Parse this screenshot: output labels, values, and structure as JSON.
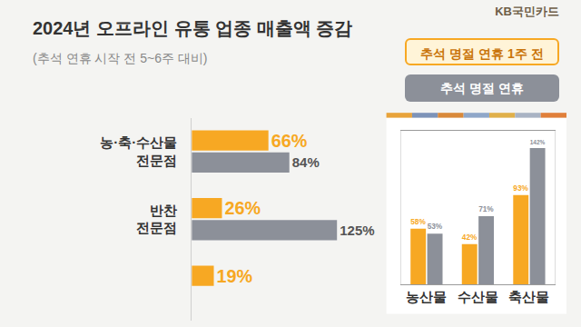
{
  "logo": "KB국민카드",
  "chart_data": [
    {
      "type": "bar",
      "title": "2024년 오프라인 유통 업종 매출액 증감",
      "subtitle": "(추석 연휴 시작 전 5~6주 대비)",
      "orientation": "horizontal",
      "categories": [
        "농·축·수산물 전문점",
        "반찬 전문점",
        null
      ],
      "series": [
        {
          "name": "추석 명절 연휴 1주 전",
          "color": "#f7a823",
          "values": [
            66,
            26,
            19
          ],
          "value_labels": [
            "66%",
            "26%",
            "19%"
          ]
        },
        {
          "name": "추석 명절 연휴",
          "color": "#8c9099",
          "values": [
            84,
            125,
            null
          ],
          "value_labels": [
            "84%",
            "125%",
            null
          ]
        }
      ],
      "xlim": [
        0,
        150
      ],
      "data_labels": true,
      "tick_labels": "y",
      "legend": "upper right",
      "grid": false
    },
    {
      "type": "bar",
      "categories": [
        "농산물",
        "수산물",
        "축산물"
      ],
      "series": [
        {
          "color": "#f7a823",
          "values": [
            58,
            42,
            93
          ],
          "value_labels": [
            "58%",
            "42%",
            "93%"
          ]
        },
        {
          "color": "#8c9099",
          "values": [
            53,
            71,
            142
          ],
          "value_labels": [
            "53%",
            "71%",
            "142%"
          ]
        }
      ],
      "ylim": [
        0,
        160
      ],
      "data_labels": true,
      "tick_labels": "x",
      "grid": false
    }
  ]
}
